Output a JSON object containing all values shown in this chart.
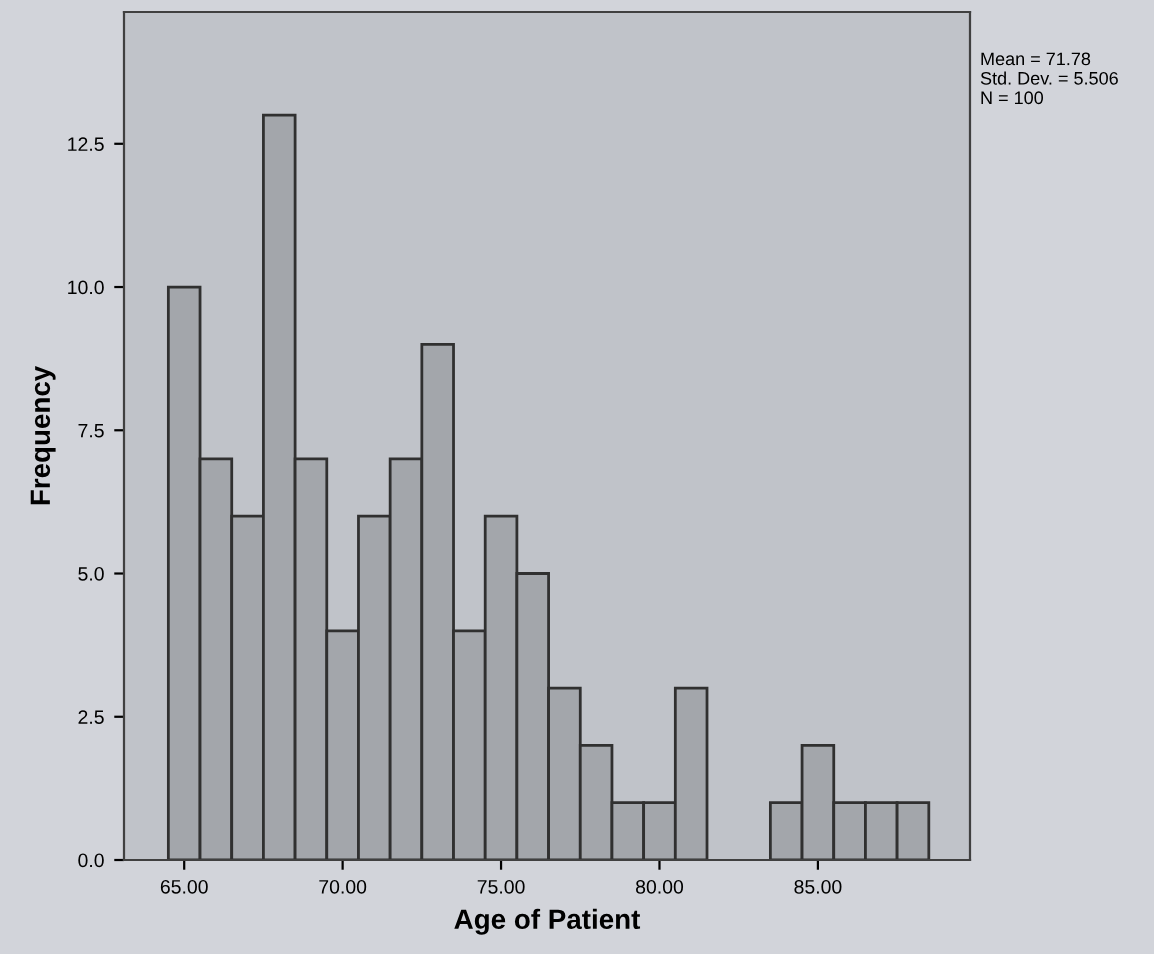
{
  "chart_data": {
    "type": "histogram",
    "xlabel": "Age of Patient",
    "ylabel": "Frequency",
    "bins": [
      64.5,
      65.5,
      66.5,
      67.5,
      68.5,
      69.5,
      70.5,
      71.5,
      72.5,
      73.5,
      74.5,
      75.5,
      76.5,
      77.5,
      78.5,
      79.5,
      80.5,
      81.5,
      82.5,
      83.5,
      84.5,
      85.5,
      86.5,
      87.5,
      88.5
    ],
    "values": [
      10,
      7,
      6,
      13,
      7,
      4,
      6,
      7,
      9,
      4,
      6,
      5,
      3,
      2,
      1,
      1,
      3,
      0,
      0,
      1,
      2,
      1,
      1,
      1
    ],
    "color": "#a3a6ab",
    "xlim": [
      63.1,
      89.8
    ],
    "ylim": [
      0,
      14.8
    ],
    "xticks": [
      {
        "value": 65,
        "label": "65.00"
      },
      {
        "value": 70,
        "label": "70.00"
      },
      {
        "value": 75,
        "label": "75.00"
      },
      {
        "value": 80,
        "label": "80.00"
      },
      {
        "value": 85,
        "label": "85.00"
      }
    ],
    "yticks": [
      {
        "value": 0,
        "label": "0.0"
      },
      2.5,
      {
        "value": 5,
        "label": "5.0"
      },
      7.5,
      {
        "value": 10,
        "label": "10.0"
      },
      12.5
    ],
    "annotations": [
      "Mean = 71.78\nStd. Dev. = 5.506\nN = 100"
    ],
    "grid": false,
    "legend": false
  }
}
